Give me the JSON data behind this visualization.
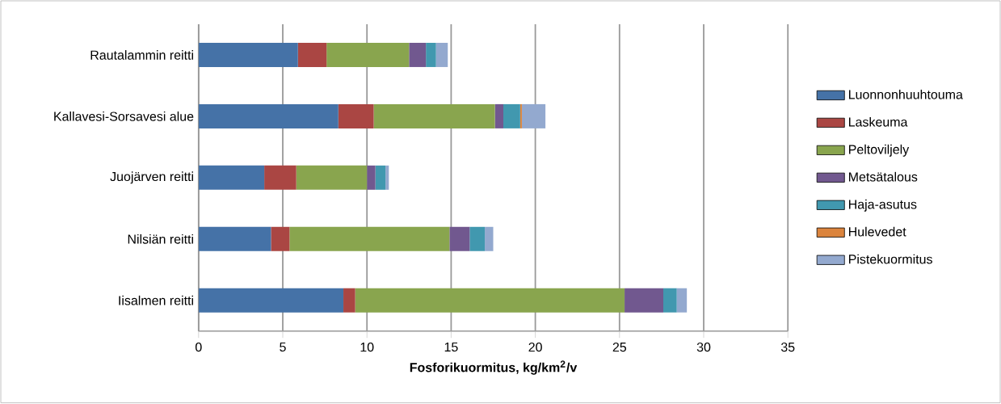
{
  "chart_data": {
    "type": "bar",
    "orientation": "horizontal",
    "stacked": true,
    "xlabel": "Fosforikuormitus,  kg/km$^{2}$/v",
    "categories": [
      "Rautalammin reitti",
      "Kallavesi-Sorsavesi alue",
      "Juojärven reitti",
      "Nilsiän reitti",
      "Iisalmen reitti"
    ],
    "series": [
      {
        "name": "Luonnonhuuhtouma",
        "color": "#4572a7",
        "values": [
          5.9,
          8.3,
          3.9,
          4.3,
          8.6
        ]
      },
      {
        "name": "Laskeuma",
        "color": "#aa4643",
        "values": [
          1.7,
          2.1,
          1.9,
          1.1,
          0.7
        ]
      },
      {
        "name": "Peltoviljely",
        "color": "#89a54e",
        "values": [
          4.9,
          7.2,
          4.2,
          9.5,
          16.0
        ]
      },
      {
        "name": "Metsätalous",
        "color": "#71588f",
        "values": [
          1.0,
          0.5,
          0.5,
          1.2,
          2.3
        ]
      },
      {
        "name": "Haja-asutus",
        "color": "#4198af",
        "values": [
          0.6,
          1.0,
          0.6,
          0.9,
          0.8
        ]
      },
      {
        "name": "Hulevedet",
        "color": "#db843d",
        "values": [
          0,
          0.1,
          0,
          0,
          0
        ]
      },
      {
        "name": "Pistekuormitus",
        "color": "#93a9cf",
        "values": [
          0.7,
          1.4,
          0.2,
          0.5,
          0.6
        ]
      }
    ],
    "xlim": [
      0,
      35
    ],
    "xticks": [
      0,
      5,
      10,
      15,
      20,
      25,
      30,
      35
    ],
    "grid": "x",
    "legend": "right"
  }
}
